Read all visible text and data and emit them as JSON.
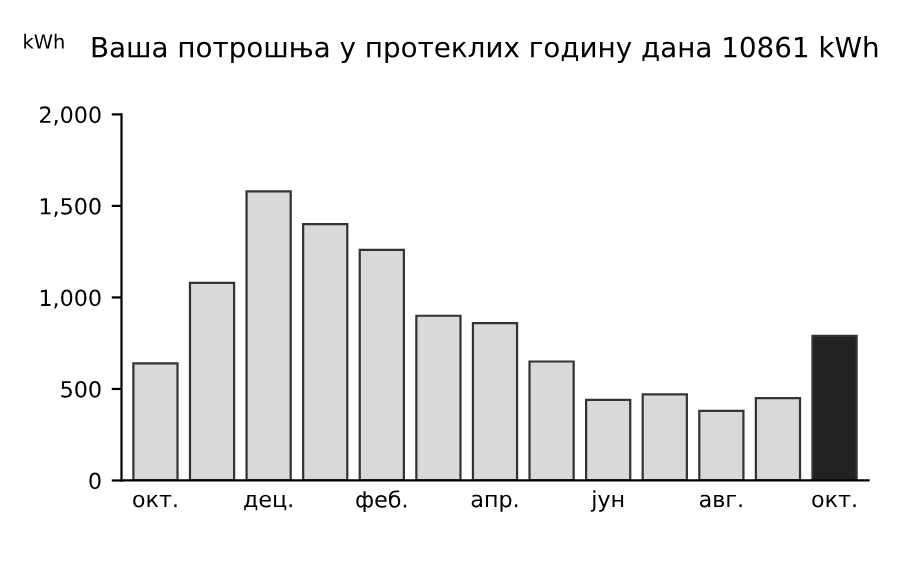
{
  "chart_data": {
    "type": "bar",
    "title": "Ваша потрошња у протеклих годину дана 10861 kWh",
    "ylabel": "kWh",
    "categories": [
      "окт.",
      null,
      "дец.",
      null,
      "феб.",
      null,
      "апр.",
      null,
      "јун",
      null,
      "авг.",
      null,
      "окт."
    ],
    "values": [
      640,
      1080,
      1580,
      1400,
      1260,
      900,
      860,
      650,
      440,
      470,
      380,
      450,
      790
    ],
    "colors": [
      "#d9d9d9",
      "#d9d9d9",
      "#d9d9d9",
      "#d9d9d9",
      "#d9d9d9",
      "#d9d9d9",
      "#d9d9d9",
      "#d9d9d9",
      "#d9d9d9",
      "#d9d9d9",
      "#d9d9d9",
      "#d9d9d9",
      "#222222"
    ],
    "ylim": [
      0,
      2000
    ],
    "yticks": [
      0,
      500,
      {
        "value": 1000,
        "label": "1,000"
      },
      {
        "value": 1500,
        "label": "1,500"
      },
      {
        "value": 2000,
        "label": "2,000"
      }
    ],
    "grid": false
  }
}
